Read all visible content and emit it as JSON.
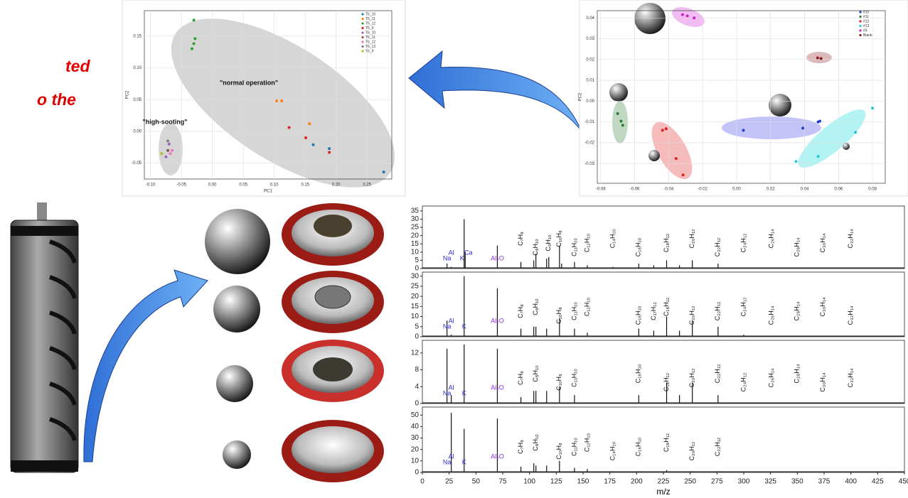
{
  "caption": {
    "lines": [
      "ted",
      "o the"
    ]
  },
  "chart_data": [
    {
      "type": "scatter",
      "xlabel": "PC1",
      "ylabel": "PC2",
      "xlim": [
        -0.11,
        0.29
      ],
      "ylim": [
        -0.075,
        0.19
      ],
      "xticks": [
        {
          "value": -0.1,
          "label": "-0.10"
        },
        {
          "value": -0.05,
          "label": "-0.05"
        },
        {
          "value": 0,
          "label": "0.00"
        },
        {
          "value": 0.05,
          "label": "0.05"
        },
        {
          "value": 0.1,
          "label": "0.10"
        },
        {
          "value": 0.15,
          "label": "0.15"
        },
        {
          "value": 0.2,
          "label": "0.20"
        },
        {
          "value": 0.25,
          "label": "0.25"
        }
      ],
      "yticks": [
        {
          "value": -0.05,
          "label": "-0.05"
        },
        {
          "value": 0,
          "label": "0.00"
        },
        {
          "value": 0.05,
          "label": "0.05"
        },
        {
          "value": 0.1,
          "label": "0.10"
        },
        {
          "value": 0.15,
          "label": "0.15"
        }
      ],
      "grid": true,
      "legend": "upper right",
      "annotations": [
        "\"normal operation\"",
        "\"high-sooting\""
      ],
      "series": [
        {
          "name": "T5_10",
          "color": "#1f77b4",
          "x": [
            0.277,
            0.163,
            0.189
          ],
          "values": [
            -0.064,
            -0.021,
            -0.027
          ]
        },
        {
          "name": "T5_11",
          "color": "#ff7f0e",
          "x": [
            0.104,
            0.112,
            0.157
          ],
          "values": [
            0.048,
            0.048,
            0.012
          ]
        },
        {
          "name": "T5_12",
          "color": "#2ca02c",
          "x": [
            -0.03,
            -0.028,
            -0.03,
            -0.033
          ],
          "values": [
            0.175,
            0.146,
            0.138,
            0.13
          ]
        },
        {
          "name": "T5_9",
          "color": "#d62728",
          "x": [
            0.124,
            0.151,
            0.189
          ],
          "values": [
            0.006,
            -0.01,
            -0.033
          ]
        },
        {
          "name": "T6_10",
          "color": "#9467bd",
          "x": [
            -0.07,
            -0.075
          ],
          "values": [
            -0.02,
            -0.04
          ]
        },
        {
          "name": "T6_11",
          "color": "#8c564b",
          "x": [
            -0.072
          ],
          "values": [
            -0.03
          ]
        },
        {
          "name": "T6_12",
          "color": "#e377c2",
          "x": [
            -0.068,
            -0.065
          ],
          "values": [
            -0.035,
            -0.03
          ]
        },
        {
          "name": "T6_13",
          "color": "#7f7f7f",
          "x": [
            -0.072
          ],
          "values": [
            -0.015
          ]
        },
        {
          "name": "T6_9",
          "color": "#bcbd22",
          "x": [
            -0.082
          ],
          "values": [
            -0.035
          ]
        }
      ]
    },
    {
      "type": "scatter",
      "ylabel": "PC2",
      "xlim": [
        -0.082,
        0.0875
      ],
      "ylim": [
        -0.0395,
        0.0435
      ],
      "xticks": [
        {
          "value": -0.08,
          "label": "-0.08"
        },
        {
          "value": -0.06,
          "label": "-0.06"
        },
        {
          "value": -0.04,
          "label": "-0.04"
        },
        {
          "value": -0.02,
          "label": "-0.02"
        },
        {
          "value": 0,
          "label": "0.00"
        },
        {
          "value": 0.02,
          "label": "0.02"
        },
        {
          "value": 0.04,
          "label": "0.04"
        },
        {
          "value": 0.06,
          "label": "0.06"
        },
        {
          "value": 0.08,
          "label": "0.08"
        }
      ],
      "yticks": [
        {
          "value": -0.03,
          "label": "-0.03"
        },
        {
          "value": -0.02,
          "label": "-0.02"
        },
        {
          "value": -0.01,
          "label": "-0.01"
        },
        {
          "value": 0,
          "label": "0.00"
        },
        {
          "value": 0.01,
          "label": "0.01"
        },
        {
          "value": 0.02,
          "label": "0.02"
        },
        {
          "value": 0.03,
          "label": "0.03"
        },
        {
          "value": 0.04,
          "label": "0.04"
        }
      ],
      "grid": true,
      "legend": "upper right",
      "series": [
        {
          "name": "#10",
          "color": "#1f3fd0",
          "x": [
            0.004,
            0.039,
            0.048,
            0.049
          ],
          "values": [
            -0.014,
            -0.013,
            -0.01,
            -0.0096
          ]
        },
        {
          "name": "#11",
          "color": "#2e7d32",
          "x": [
            -0.07,
            -0.068,
            -0.067
          ],
          "values": [
            -0.006,
            -0.0096,
            -0.0116
          ]
        },
        {
          "name": "#12",
          "color": "#e02020",
          "x": [
            -0.0436,
            -0.0415,
            -0.0356,
            -0.0315
          ],
          "values": [
            -0.014,
            -0.0133,
            -0.0276,
            -0.0355
          ]
        },
        {
          "name": "#13",
          "color": "#20c8d8",
          "x": [
            0.08,
            0.07,
            0.048,
            0.035
          ],
          "values": [
            -0.0034,
            -0.015,
            -0.0266,
            -0.029
          ]
        },
        {
          "name": "#9",
          "color": "#d020d0",
          "x": [
            -0.0318,
            -0.029,
            -0.025
          ],
          "values": [
            0.0416,
            0.041,
            0.04
          ]
        },
        {
          "name": "Blank",
          "color": "#8b1a1a",
          "x": [
            0.0477,
            0.0497
          ],
          "values": [
            0.0208,
            0.0205
          ]
        }
      ]
    },
    {
      "type": "spectrum",
      "xlim": [
        0,
        450
      ],
      "ylim": [
        0,
        38
      ],
      "yticks": [
        0,
        5,
        10,
        15,
        20,
        25,
        30,
        35
      ],
      "x": [
        23,
        27,
        39,
        40,
        70,
        92,
        104,
        106,
        116,
        118,
        128,
        130,
        142,
        154,
        178,
        202,
        216,
        228,
        240,
        252,
        276
      ],
      "values": [
        3,
        1,
        30,
        10,
        14,
        4,
        5,
        9,
        6,
        7,
        14,
        3,
        4,
        2,
        1,
        3,
        2,
        5,
        2,
        5,
        3
      ],
      "annotations": [
        {
          "text": "Na",
          "x": 23,
          "color": "#2a2ad0"
        },
        {
          "text": "Al",
          "x": 27,
          "color": "#2a2ad0"
        },
        {
          "text": "K",
          "x": 37,
          "color": "#2a2ad0"
        },
        {
          "text": "Ca",
          "x": 43,
          "color": "#2a2ad0"
        },
        {
          "text": "Al₂O",
          "x": 70,
          "color": "#8a2be2"
        },
        {
          "text": "C₇H₈",
          "x": 92
        },
        {
          "text": "C₈H₁₀",
          "x": 106
        },
        {
          "text": "C₉H₁₀",
          "x": 118
        },
        {
          "text": "C₁₀H₈",
          "x": 128
        },
        {
          "text": "C₁₁H₁₀",
          "x": 142
        },
        {
          "text": "C₁₂H₁₀",
          "x": 154
        },
        {
          "text": "C₁₄H₁₀",
          "x": 178
        },
        {
          "text": "C₁₆H₁₀",
          "x": 202
        },
        {
          "text": "C₁₈H₁₂",
          "x": 228
        },
        {
          "text": "C₂₀H₁₂",
          "x": 252
        },
        {
          "text": "C₂₂H₁₂",
          "x": 276
        },
        {
          "text": "C₂₄H₁₂",
          "x": 300
        },
        {
          "text": "C₂₆H₁₄",
          "x": 326
        },
        {
          "text": "C₂₈H₁₄",
          "x": 350
        },
        {
          "text": "C₃₀H₁₄",
          "x": 374
        },
        {
          "text": "C₃₂H₁₄",
          "x": 400
        }
      ]
    },
    {
      "type": "spectrum",
      "xlim": [
        0,
        450
      ],
      "ylim": [
        0,
        32
      ],
      "yticks": [
        0,
        5,
        10,
        15,
        20,
        25,
        30
      ],
      "x": [
        23,
        27,
        39,
        70,
        92,
        104,
        106,
        116,
        128,
        142,
        154,
        202,
        216,
        228,
        240,
        252,
        276,
        300
      ],
      "values": [
        8,
        1,
        30,
        24,
        4,
        5,
        5,
        4,
        9,
        4,
        2,
        4,
        3,
        10,
        3,
        8,
        5,
        1
      ],
      "annotations": [
        {
          "text": "Na",
          "x": 23,
          "color": "#2a2ad0"
        },
        {
          "text": "Al",
          "x": 27,
          "color": "#2a2ad0"
        },
        {
          "text": "K",
          "x": 39,
          "color": "#2a2ad0"
        },
        {
          "text": "Al₂O",
          "x": 70,
          "color": "#8a2be2"
        },
        {
          "text": "C₇H₈",
          "x": 92
        },
        {
          "text": "C₈H₁₀",
          "x": 106
        },
        {
          "text": "C₁₀H₈",
          "x": 128
        },
        {
          "text": "C₁₁H₁₀",
          "x": 142
        },
        {
          "text": "C₁₂H₁₀",
          "x": 154
        },
        {
          "text": "C₁₆H₁₀",
          "x": 202
        },
        {
          "text": "C₁₇H₁₂",
          "x": 216
        },
        {
          "text": "C₁₈H₁₂",
          "x": 228
        },
        {
          "text": "C₂₀H₁₂",
          "x": 252
        },
        {
          "text": "C₂₂H₁₂",
          "x": 276
        },
        {
          "text": "C₂₄H₁₂",
          "x": 300
        },
        {
          "text": "C₂₆H₁₄",
          "x": 326
        },
        {
          "text": "C₂₈H₁₄",
          "x": 350
        },
        {
          "text": "C₃₀H₁₄",
          "x": 374
        },
        {
          "text": "C₃₂H₁₄",
          "x": 400
        }
      ]
    },
    {
      "type": "spectrum",
      "xlim": [
        0,
        450
      ],
      "ylim": [
        0,
        15
      ],
      "yticks": [
        0,
        4,
        8,
        12
      ],
      "x": [
        23,
        27,
        39,
        70,
        92,
        104,
        106,
        116,
        128,
        142,
        202,
        228,
        240,
        252,
        276
      ],
      "values": [
        13,
        2,
        14,
        13,
        1.5,
        3,
        3,
        3,
        4,
        2,
        2,
        5,
        2,
        5,
        2
      ],
      "annotations": [
        {
          "text": "Na",
          "x": 23,
          "color": "#2a2ad0"
        },
        {
          "text": "Al",
          "x": 27,
          "color": "#2a2ad0"
        },
        {
          "text": "K",
          "x": 39,
          "color": "#2a2ad0"
        },
        {
          "text": "Al₂O",
          "x": 70,
          "color": "#8a2be2"
        },
        {
          "text": "C₇H₈",
          "x": 92
        },
        {
          "text": "C₈H₁₀",
          "x": 106
        },
        {
          "text": "C₁₀H₈",
          "x": 128
        },
        {
          "text": "C₁₁H₁₀",
          "x": 142
        },
        {
          "text": "C₁₆H₁₀",
          "x": 202
        },
        {
          "text": "C₁₈H₁₂",
          "x": 228
        },
        {
          "text": "C₂₀H₁₂",
          "x": 252
        },
        {
          "text": "C₂₂H₁₂",
          "x": 276
        },
        {
          "text": "C₂₄H₁₂",
          "x": 300
        },
        {
          "text": "C₂₆H₁₄",
          "x": 326
        },
        {
          "text": "C₂₈H₁₄",
          "x": 350
        },
        {
          "text": "C₃₀H₁₄",
          "x": 374
        },
        {
          "text": "C₃₂H₁₄",
          "x": 400
        }
      ]
    },
    {
      "type": "spectrum",
      "xlabel": "m/z",
      "xlim": [
        0,
        450
      ],
      "ylim": [
        0,
        57
      ],
      "yticks": [
        0,
        10,
        20,
        30,
        40,
        50
      ],
      "xticks": [
        0,
        25,
        50,
        75,
        100,
        125,
        150,
        175,
        200,
        225,
        250,
        275,
        300,
        325,
        350,
        375,
        400,
        425,
        450
      ],
      "x": [
        23,
        27,
        39,
        70,
        92,
        104,
        106,
        116,
        128,
        142,
        154,
        178,
        202,
        228,
        252,
        276
      ],
      "values": [
        1,
        52,
        38,
        47,
        5,
        8,
        6,
        6,
        10,
        4,
        3,
        1,
        1,
        2,
        1,
        1
      ],
      "annotations": [
        {
          "text": "Na",
          "x": 23,
          "color": "#2a2ad0"
        },
        {
          "text": "Al",
          "x": 27,
          "color": "#2a2ad0"
        },
        {
          "text": "K",
          "x": 39,
          "color": "#2a2ad0"
        },
        {
          "text": "Al₂O",
          "x": 70,
          "color": "#8a2be2"
        },
        {
          "text": "C₇H₈",
          "x": 92
        },
        {
          "text": "C₈H₁₀",
          "x": 106
        },
        {
          "text": "C₁₀H₈",
          "x": 128
        },
        {
          "text": "C₁₁H₁₀",
          "x": 142
        },
        {
          "text": "C₁₂H₁₀",
          "x": 154
        },
        {
          "text": "C₁₄H₁₀",
          "x": 178
        },
        {
          "text": "C₁₆H₁₀",
          "x": 202
        },
        {
          "text": "C₁₈H₁₂",
          "x": 228
        },
        {
          "text": "C₂₀H₁₂",
          "x": 252
        },
        {
          "text": "C₂₂H₁₂",
          "x": 276
        }
      ]
    }
  ]
}
